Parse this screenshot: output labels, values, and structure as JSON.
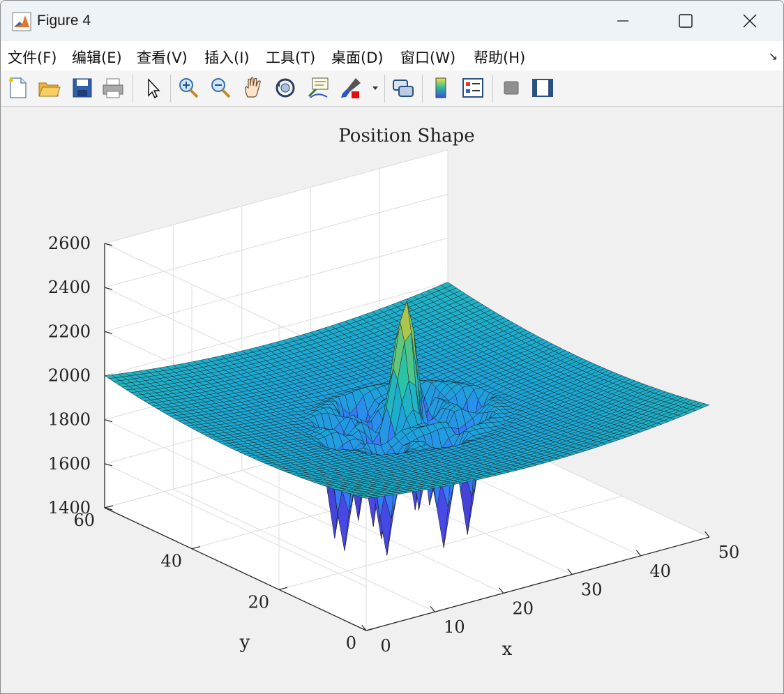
{
  "window": {
    "title": "Figure 4"
  },
  "menubar": {
    "items": [
      {
        "label": "文件(F)"
      },
      {
        "label": "编辑(E)"
      },
      {
        "label": "查看(V)"
      },
      {
        "label": "插入(I)"
      },
      {
        "label": "工具(T)"
      },
      {
        "label": "桌面(D)"
      },
      {
        "label": "窗口(W)"
      },
      {
        "label": "帮助(H)"
      }
    ]
  },
  "toolbar": {
    "icons": [
      "new-figure-icon",
      "open-file-icon",
      "save-icon",
      "print-icon",
      "edit-plot-icon",
      "zoom-in-icon",
      "zoom-out-icon",
      "pan-icon",
      "rotate-3d-icon",
      "data-cursor-icon",
      "brush-icon",
      "brush-dropdown-icon",
      "link-plot-icon",
      "colorbar-icon",
      "legend-icon",
      "hide-plot-tools-icon",
      "show-plot-tools-icon"
    ]
  },
  "chart_data": {
    "type": "surface",
    "title": "Position Shape",
    "xlabel": "x",
    "ylabel": "y",
    "zlabel": "",
    "xlim": [
      0,
      50
    ],
    "ylim": [
      0,
      60
    ],
    "zlim": [
      1400,
      2600
    ],
    "xticks": [
      0,
      10,
      20,
      30,
      40,
      50
    ],
    "yticks": [
      0,
      20,
      40,
      60
    ],
    "zticks": [
      1400,
      1600,
      1800,
      2000,
      2200,
      2400,
      2600
    ],
    "grid": true,
    "colormap": "parula",
    "grid_size": [
      50,
      60
    ],
    "base_level": 1880,
    "edge_level": 2000,
    "center": [
      25,
      30
    ],
    "peak_value": 2420,
    "well_min_value": 1370,
    "wells": [
      [
        17,
        22
      ],
      [
        24,
        20
      ],
      [
        30,
        24
      ],
      [
        34,
        30
      ],
      [
        30,
        36
      ],
      [
        23,
        38
      ],
      [
        17,
        34
      ],
      [
        14,
        27
      ],
      [
        20,
        28
      ],
      [
        27,
        28
      ],
      [
        22,
        33
      ],
      [
        28,
        32
      ]
    ]
  }
}
